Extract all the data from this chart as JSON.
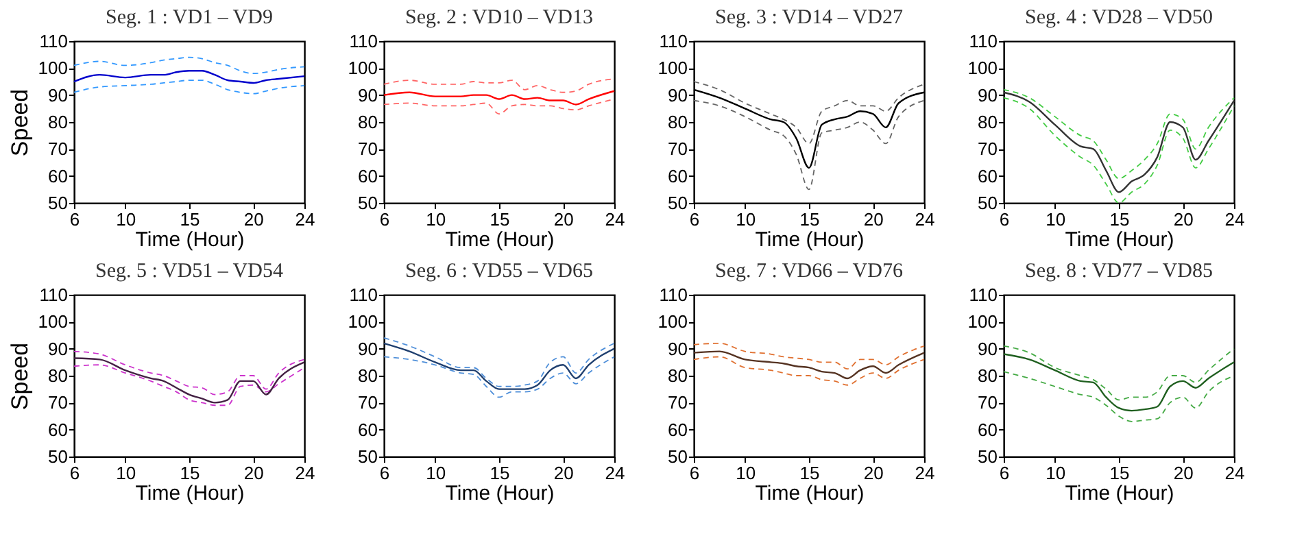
{
  "chart_data": [
    {
      "type": "line",
      "title": "Seg. 1 : VD1 – VD9",
      "xlabel": "Time (Hour)",
      "ylabel": "Speed",
      "xlim": [
        6,
        24
      ],
      "xticks": [
        6,
        10,
        15,
        20,
        24
      ],
      "ylim": [
        50,
        110
      ],
      "yticks": [
        50,
        60,
        70,
        80,
        90,
        100,
        110
      ],
      "grid": false,
      "legend": false,
      "x": [
        6,
        8,
        10,
        12,
        13,
        14,
        15,
        16,
        17,
        18,
        19,
        20,
        21,
        22,
        24
      ],
      "series": [
        {
          "color": "#3399ff",
          "line_style": "dashed",
          "values": [
            101,
            102.5,
            101,
            102,
            103,
            103.5,
            104,
            103.5,
            102,
            101,
            99,
            98,
            98.5,
            99.5,
            100.5
          ]
        },
        {
          "color": "#3399ff",
          "line_style": "dashed",
          "values": [
            91,
            93,
            93.5,
            94,
            94.5,
            95,
            95.5,
            95.5,
            94,
            92,
            91,
            90.5,
            91.5,
            92.5,
            93.5
          ]
        },
        {
          "color": "#0000cc",
          "line_style": "solid",
          "values": [
            95,
            97.5,
            96.5,
            97.5,
            97.5,
            98.5,
            99,
            99,
            97.5,
            95.5,
            95,
            94.5,
            95.5,
            96,
            97
          ]
        }
      ]
    },
    {
      "type": "line",
      "title": "Seg. 2 : VD10 – VD13",
      "xlabel": "Time (Hour)",
      "xlim": [
        6,
        24
      ],
      "xticks": [
        6,
        10,
        15,
        20,
        24
      ],
      "ylim": [
        50,
        110
      ],
      "yticks": [
        50,
        60,
        70,
        80,
        90,
        100,
        110
      ],
      "grid": false,
      "legend": false,
      "x": [
        6,
        8,
        10,
        12,
        13,
        14,
        15,
        16,
        17,
        18,
        19,
        20,
        21,
        22,
        24
      ],
      "series": [
        {
          "color": "#ff6666",
          "line_style": "dashed",
          "values": [
            94,
            95.5,
            94,
            94,
            95,
            94.5,
            94.5,
            95.5,
            92,
            93.5,
            92,
            91,
            91.5,
            94,
            96
          ]
        },
        {
          "color": "#ff6666",
          "line_style": "dashed",
          "values": [
            86.5,
            87,
            86,
            86,
            86.5,
            87,
            83,
            86,
            86.5,
            86,
            86,
            85,
            84.5,
            86,
            88.5
          ]
        },
        {
          "color": "#ff0000",
          "line_style": "solid",
          "values": [
            90,
            91,
            89.5,
            89.5,
            90,
            90,
            88.5,
            90,
            88.5,
            89,
            88,
            88,
            86.5,
            88.5,
            91.5
          ]
        }
      ]
    },
    {
      "type": "line",
      "title": "Seg. 3 : VD14 – VD27",
      "xlabel": "Time (Hour)",
      "xlim": [
        6,
        24
      ],
      "xticks": [
        6,
        10,
        15,
        20,
        24
      ],
      "ylim": [
        50,
        110
      ],
      "yticks": [
        50,
        60,
        70,
        80,
        90,
        100,
        110
      ],
      "grid": false,
      "legend": false,
      "x": [
        6,
        8,
        10,
        12,
        13,
        14,
        15,
        16,
        17,
        18,
        19,
        20,
        21,
        22,
        24
      ],
      "series": [
        {
          "color": "#666666",
          "line_style": "dashed",
          "values": [
            95,
            92,
            87,
            83,
            81,
            78,
            72,
            84,
            86,
            88,
            86,
            86,
            84,
            89,
            94
          ]
        },
        {
          "color": "#666666",
          "line_style": "dashed",
          "values": [
            88,
            86,
            82,
            77,
            75,
            68,
            55,
            76,
            77,
            78,
            80,
            77,
            72,
            82,
            88
          ]
        },
        {
          "color": "#000000",
          "line_style": "solid",
          "values": [
            92,
            89,
            85,
            81,
            80,
            74,
            63,
            79,
            81,
            82,
            84,
            83,
            78,
            87,
            91
          ]
        }
      ]
    },
    {
      "type": "line",
      "title": "Seg. 4 : VD28 – VD50",
      "xlabel": "Time (Hour)",
      "xlim": [
        6,
        24
      ],
      "xticks": [
        6,
        10,
        15,
        20,
        24
      ],
      "ylim": [
        50,
        110
      ],
      "yticks": [
        50,
        60,
        70,
        80,
        90,
        100,
        110
      ],
      "grid": false,
      "legend": false,
      "x": [
        6,
        8,
        10,
        12,
        13,
        14,
        15,
        16,
        17,
        18,
        19,
        20,
        21,
        22,
        24
      ],
      "series": [
        {
          "color": "#44cc44",
          "line_style": "dashed",
          "values": [
            92,
            89,
            82,
            75,
            73,
            66,
            59,
            62,
            66,
            72,
            83,
            81,
            70,
            78,
            89
          ]
        },
        {
          "color": "#44cc44",
          "line_style": "dashed",
          "values": [
            89,
            85,
            75,
            67,
            64,
            57,
            50,
            54,
            57,
            64,
            77,
            74,
            63,
            70,
            86
          ]
        },
        {
          "color": "#333333",
          "line_style": "solid",
          "values": [
            91,
            87.5,
            79,
            71,
            70,
            62,
            54,
            58,
            60.5,
            67,
            80,
            78,
            66,
            73,
            88
          ]
        }
      ]
    },
    {
      "type": "line",
      "title": "Seg. 5 : VD51 – VD54",
      "xlabel": "Time (Hour)",
      "ylabel": "Speed",
      "xlim": [
        6,
        24
      ],
      "xticks": [
        6,
        10,
        15,
        20,
        24
      ],
      "ylim": [
        50,
        110
      ],
      "yticks": [
        50,
        60,
        70,
        80,
        90,
        100,
        110
      ],
      "grid": false,
      "legend": false,
      "x": [
        6,
        8,
        10,
        12,
        13,
        14,
        15,
        16,
        17,
        18,
        19,
        20,
        21,
        22,
        24
      ],
      "series": [
        {
          "color": "#cc33cc",
          "line_style": "dashed",
          "values": [
            89,
            88,
            84,
            81,
            80,
            78,
            76,
            75.5,
            73,
            74,
            80,
            80,
            75,
            81,
            86
          ]
        },
        {
          "color": "#cc33cc",
          "line_style": "dashed",
          "values": [
            83.5,
            84,
            81,
            78,
            76,
            74,
            71,
            70,
            69,
            69,
            76,
            76.5,
            74,
            77,
            83
          ]
        },
        {
          "color": "#442244",
          "line_style": "solid",
          "values": [
            86.5,
            86,
            82,
            79,
            78,
            75.5,
            73,
            71.5,
            70,
            71,
            78,
            78,
            73,
            79,
            85
          ]
        }
      ]
    },
    {
      "type": "line",
      "title": "Seg. 6 : VD55 – VD65",
      "xlabel": "Time (Hour)",
      "xlim": [
        6,
        24
      ],
      "xticks": [
        6,
        10,
        15,
        20,
        24
      ],
      "ylim": [
        50,
        110
      ],
      "yticks": [
        50,
        60,
        70,
        80,
        90,
        100,
        110
      ],
      "grid": false,
      "legend": false,
      "x": [
        6,
        8,
        10,
        12,
        13,
        14,
        15,
        16,
        17,
        18,
        19,
        20,
        21,
        22,
        24
      ],
      "series": [
        {
          "color": "#4f8fd9",
          "line_style": "dashed",
          "values": [
            94,
            91,
            87,
            83,
            83,
            79,
            76,
            76,
            76.5,
            78,
            85,
            87,
            81,
            86,
            92
          ]
        },
        {
          "color": "#4f8fd9",
          "line_style": "dashed",
          "values": [
            87,
            86,
            84,
            81,
            80.5,
            76,
            72,
            74,
            74,
            75,
            79,
            81,
            77,
            81,
            87
          ]
        },
        {
          "color": "#1f3f6f",
          "line_style": "solid",
          "values": [
            92,
            89,
            85,
            82,
            82,
            78,
            75,
            75,
            75,
            76.5,
            82,
            84,
            79,
            84,
            90
          ]
        }
      ]
    },
    {
      "type": "line",
      "title": "Seg. 7 : VD66 – VD76",
      "xlabel": "Time (Hour)",
      "xlim": [
        6,
        24
      ],
      "xticks": [
        6,
        10,
        15,
        20,
        24
      ],
      "ylim": [
        50,
        110
      ],
      "yticks": [
        50,
        60,
        70,
        80,
        90,
        100,
        110
      ],
      "grid": false,
      "legend": false,
      "x": [
        6,
        8,
        10,
        12,
        13,
        14,
        15,
        16,
        17,
        18,
        19,
        20,
        21,
        22,
        24
      ],
      "series": [
        {
          "color": "#e07030",
          "line_style": "dashed",
          "values": [
            91.5,
            92,
            89,
            88,
            87,
            86.5,
            86,
            85,
            85,
            82.5,
            86,
            86,
            84,
            87,
            91
          ]
        },
        {
          "color": "#e07030",
          "line_style": "dashed",
          "values": [
            86,
            87,
            83,
            82,
            81,
            80,
            80,
            78.5,
            78,
            76.5,
            79,
            81,
            79,
            82,
            86
          ]
        },
        {
          "color": "#553322",
          "line_style": "solid",
          "values": [
            88.5,
            89,
            86,
            85,
            84.5,
            83.5,
            83,
            81.5,
            81,
            79,
            82,
            83.5,
            81,
            84,
            88.5
          ]
        }
      ]
    },
    {
      "type": "line",
      "title": "Seg. 8 : VD77 – VD85",
      "xlabel": "Time (Hour)",
      "xlim": [
        6,
        24
      ],
      "xticks": [
        6,
        10,
        15,
        20,
        24
      ],
      "ylim": [
        50,
        110
      ],
      "yticks": [
        50,
        60,
        70,
        80,
        90,
        100,
        110
      ],
      "grid": false,
      "legend": false,
      "x": [
        6,
        8,
        10,
        12,
        13,
        14,
        15,
        16,
        17,
        18,
        19,
        20,
        21,
        22,
        24
      ],
      "series": [
        {
          "color": "#44aa44",
          "line_style": "dashed",
          "values": [
            91,
            88.5,
            83,
            80,
            78.5,
            75,
            71,
            72,
            72,
            74,
            80,
            80,
            77.5,
            82,
            90
          ]
        },
        {
          "color": "#44aa44",
          "line_style": "dashed",
          "values": [
            81.5,
            79,
            76,
            73,
            72,
            69,
            65,
            63,
            63.5,
            64,
            70,
            72,
            68,
            74,
            80
          ]
        },
        {
          "color": "#1f5f1f",
          "line_style": "solid",
          "values": [
            88,
            86,
            82,
            78,
            77.5,
            72,
            68,
            67,
            67.5,
            68.5,
            76,
            78,
            75.5,
            79,
            85
          ]
        }
      ]
    }
  ]
}
